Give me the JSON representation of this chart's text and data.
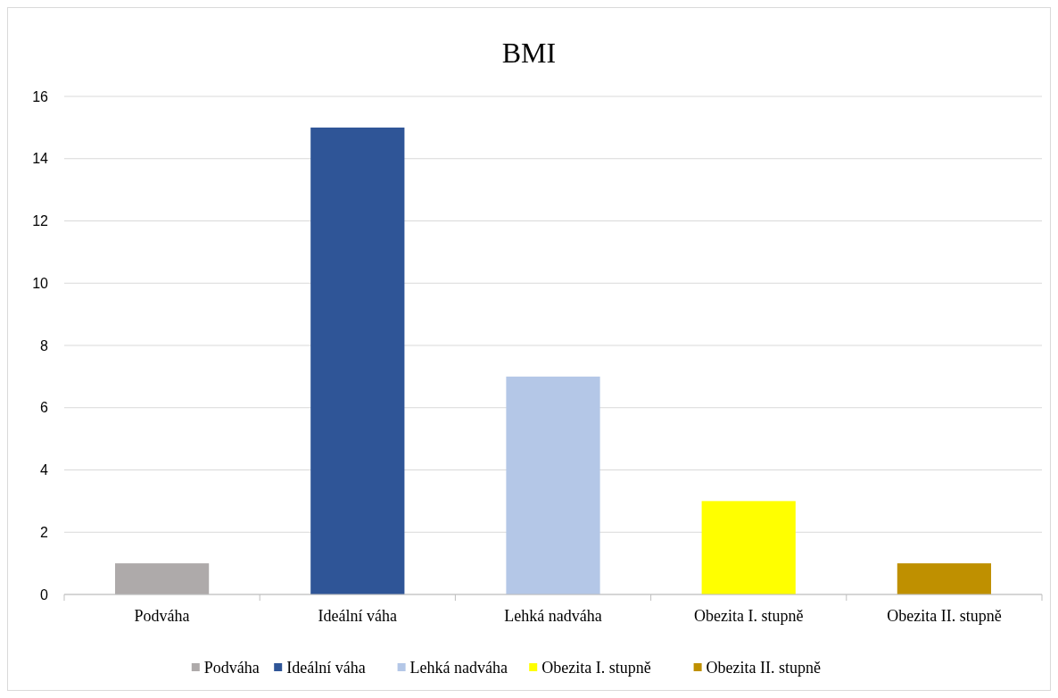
{
  "chart_data": {
    "type": "bar",
    "title": "BMI",
    "categories": [
      "Podváha",
      "Ideální váha",
      "Lehká nadváha",
      "Obezita I. stupně",
      "Obezita II. stupně"
    ],
    "series": [
      {
        "name": "Podváha",
        "color": "#aeaaaa",
        "values": [
          1,
          null,
          null,
          null,
          null
        ]
      },
      {
        "name": "Ideální váha",
        "color": "#2f5597",
        "values": [
          null,
          15,
          null,
          null,
          null
        ]
      },
      {
        "name": "Lehká nadváha",
        "color": "#b4c7e7",
        "values": [
          null,
          null,
          7,
          null,
          null
        ]
      },
      {
        "name": "Obezita I. stupně",
        "color": "#ffff00",
        "values": [
          null,
          null,
          null,
          3,
          null
        ]
      },
      {
        "name": "Obezita II. stupně",
        "color": "#bf9000",
        "values": [
          null,
          null,
          null,
          null,
          1
        ]
      }
    ],
    "stacked": true,
    "ylim": [
      0,
      16
    ],
    "yticks": [
      0,
      2,
      4,
      6,
      8,
      10,
      12,
      14,
      16
    ],
    "grid": "y",
    "legend": "bottom"
  }
}
